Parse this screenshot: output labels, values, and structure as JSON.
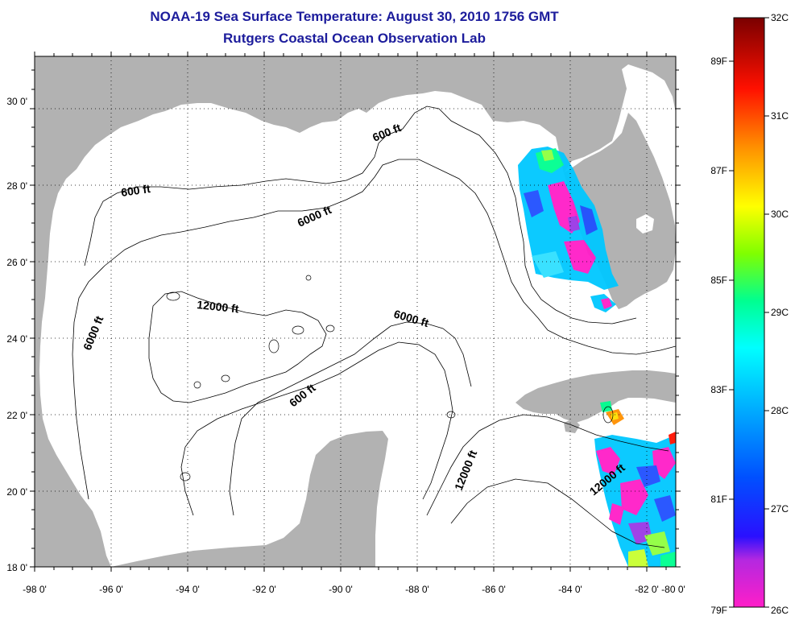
{
  "header": {
    "title": "NOAA-19 Sea Surface Temperature:  August 30, 2010 1756 GMT",
    "subtitle": "Rutgers Coastal Ocean Observation Lab"
  },
  "map": {
    "lon_ticks": [
      "-98 0'",
      "-96 0'",
      "-94 0'",
      "-92 0'",
      "-90 0'",
      "-88 0'",
      "-86 0'",
      "-84 0'",
      "-82 0'",
      "-80 0'"
    ],
    "lat_ticks": [
      "18 0'",
      "20 0'",
      "22 0'",
      "24 0'",
      "26 0'",
      "28 0'",
      "30 0'"
    ],
    "contour_labels": [
      "600 ft",
      "600 ft",
      "6000 ft",
      "6000 ft",
      "12000 ft",
      "6000 ft",
      "600 ft",
      "12000 ft",
      "12000 ft"
    ]
  },
  "colorbar": {
    "celsius": [
      "32C",
      "31C",
      "30C",
      "29C",
      "28C",
      "27C",
      "26C"
    ],
    "fahrenheit": [
      "89F",
      "87F",
      "85F",
      "83F",
      "81F",
      "79F"
    ]
  },
  "colors": {
    "land": "#b2b2b2",
    "title": "#1c1c9c",
    "sst_scale": [
      "#ff1ec8",
      "#9a38e6",
      "#0000ff",
      "#0096ff",
      "#00ffff",
      "#00ff80",
      "#a0ff00",
      "#ffff00",
      "#ff8c00",
      "#ff0000",
      "#7a0000"
    ]
  }
}
